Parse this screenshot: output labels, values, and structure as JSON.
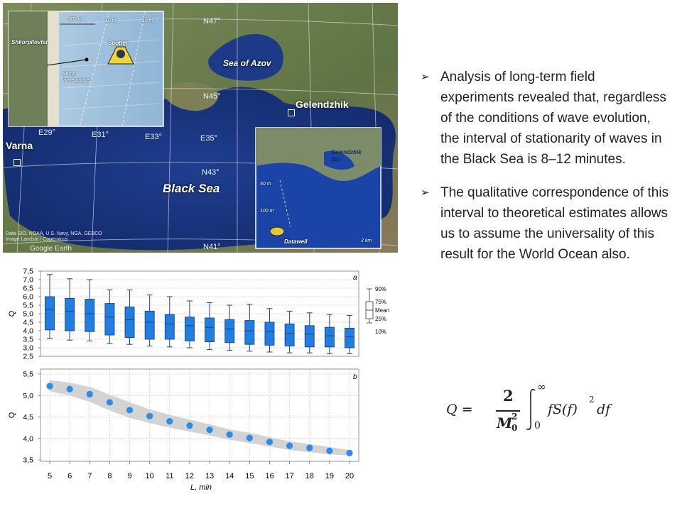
{
  "map": {
    "places": {
      "shkorpilovtsi": "Shkorpilovtsi",
      "spotter": "Spotter",
      "string_gauge": "String\nwave gauge",
      "scale_200": "200 m",
      "depth_10": "10 m",
      "depth_15": "15 m",
      "varna": "Varna",
      "gelendzhik": "Gelendzhik",
      "sea_of_azov": "Sea of Azov",
      "black_sea": "Black Sea",
      "gelendzhik_bay": "Gelendzhik\nBay",
      "datawell": "Datawell",
      "scale_2km": "2 km",
      "depth_50": "50 m",
      "depth_100": "100 m"
    },
    "coords": {
      "n47": "N47°",
      "n45": "N45°",
      "n43": "N43°",
      "n41": "N41°",
      "e29": "E29°",
      "e31": "E31°",
      "e33": "E33°",
      "e35": "E35°"
    },
    "credits": "Data SIO, NOAA, U.S. Navy, NGA, GEBCO\nImage Landsat / Copernicus",
    "google_earth": "Google Earth"
  },
  "bullets": [
    "Analysis of long-term field experiments revealed that, regardless of the conditions of wave evolution, the interval of stationarity of waves in the Black Sea is 8–12 minutes.",
    "The qualitative correspondence of this interval to theoretical estimates allows us to assume the universality of this result for the  World Ocean also."
  ],
  "bullet_mark": "➢",
  "formula": {
    "lhs": "Q =",
    "num": "2",
    "den": "M",
    "den_sup": "2",
    "den_sub": "0",
    "int_upper": "∞",
    "int_lower": "0",
    "integrand": "fS(f)",
    "power": "2",
    "df": "df"
  },
  "chart_data": [
    {
      "type": "box",
      "panel_label": "a",
      "x": [
        5,
        6,
        7,
        8,
        9,
        10,
        11,
        12,
        13,
        14,
        15,
        16,
        17,
        18,
        19,
        20
      ],
      "p10": [
        3.55,
        3.45,
        3.4,
        3.25,
        3.2,
        3.1,
        3.05,
        3.0,
        2.9,
        2.85,
        2.8,
        2.75,
        2.7,
        2.7,
        2.65,
        2.65
      ],
      "p25": [
        4.05,
        4.0,
        3.95,
        3.75,
        3.6,
        3.5,
        3.5,
        3.4,
        3.35,
        3.3,
        3.2,
        3.15,
        3.1,
        3.05,
        3.05,
        3.0
      ],
      "mean": [
        5.25,
        5.15,
        5.0,
        4.8,
        4.65,
        4.5,
        4.4,
        4.3,
        4.2,
        4.1,
        4.0,
        3.95,
        3.85,
        3.8,
        3.7,
        3.65
      ],
      "p75": [
        6.0,
        5.9,
        5.85,
        5.6,
        5.4,
        5.15,
        4.95,
        4.8,
        4.75,
        4.65,
        4.6,
        4.5,
        4.4,
        4.3,
        4.2,
        4.15
      ],
      "p90": [
        7.3,
        7.05,
        7.0,
        6.4,
        6.4,
        6.1,
        6.0,
        5.75,
        5.65,
        5.5,
        5.55,
        5.3,
        5.15,
        5.05,
        4.95,
        4.9
      ],
      "ylabel": "Q",
      "ylim": [
        2.5,
        7.5
      ],
      "yticks": [
        "2,5",
        "3,0",
        "3,5",
        "4,0",
        "4,5",
        "5,0",
        "5,5",
        "6,0",
        "6,5",
        "7,0",
        "7,5"
      ],
      "legend": [
        "90%",
        "75%",
        "Mean",
        "25%",
        "10%"
      ],
      "grid": true
    },
    {
      "type": "scatter",
      "panel_label": "b",
      "x": [
        5,
        6,
        7,
        8,
        9,
        10,
        11,
        12,
        13,
        14,
        15,
        16,
        17,
        18,
        19,
        20
      ],
      "y": [
        5.22,
        5.15,
        5.03,
        4.84,
        4.66,
        4.52,
        4.4,
        4.3,
        4.2,
        4.09,
        4.01,
        3.92,
        3.83,
        3.78,
        3.71,
        3.66
      ],
      "band_low": [
        5.1,
        5.0,
        4.85,
        4.65,
        4.48,
        4.36,
        4.25,
        4.16,
        4.07,
        3.97,
        3.89,
        3.81,
        3.73,
        3.68,
        3.63,
        3.6
      ],
      "band_high": [
        5.36,
        5.3,
        5.2,
        5.02,
        4.84,
        4.68,
        4.55,
        4.44,
        4.33,
        4.21,
        4.13,
        4.03,
        3.93,
        3.87,
        3.8,
        3.73
      ],
      "xlabel": "L, min",
      "ylabel": "Q",
      "ylim": [
        3.5,
        5.5
      ],
      "yticks": [
        "3,5",
        "4,0",
        "4,5",
        "5,0",
        "5,5"
      ],
      "xticks": [
        "5",
        "6",
        "7",
        "8",
        "9",
        "10",
        "11",
        "12",
        "13",
        "14",
        "15",
        "16",
        "17",
        "18",
        "19",
        "20"
      ],
      "grid": true
    }
  ],
  "colors": {
    "box_fill": "#1e7fe0",
    "box_stroke": "#1a3f8c",
    "whisker": "#1a3f8c",
    "dot": "#2a8ee8",
    "band": "#d3d3d3",
    "grid": "#b8b8b8"
  }
}
